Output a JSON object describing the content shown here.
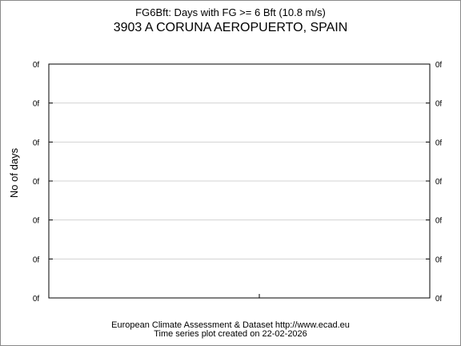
{
  "chart_data": {
    "type": "line",
    "title": "FG6Bft: Days with FG >= 6 Bft (10.8 m/s)",
    "subtitle": "3903 A CORUNA AEROPUERTO, SPAIN",
    "xlabel": "",
    "ylabel": "No of days",
    "y_tick_labels": [
      "0f",
      "0f",
      "0f",
      "0f",
      "0f",
      "0f",
      "0f"
    ],
    "series": [],
    "grid": true,
    "gridline_color": "#d3d3d3"
  },
  "footer": {
    "line1": "European Climate Assessment & Dataset  http://www.ecad.eu",
    "line2": "Time series plot created on 22-02-2026"
  }
}
